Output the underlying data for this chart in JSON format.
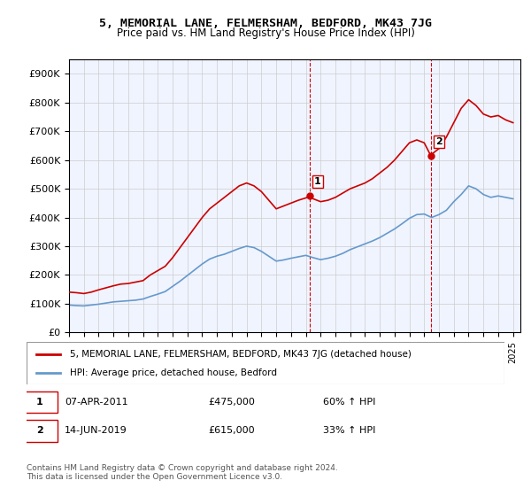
{
  "title": "5, MEMORIAL LANE, FELMERSHAM, BEDFORD, MK43 7JG",
  "subtitle": "Price paid vs. HM Land Registry's House Price Index (HPI)",
  "ylabel_ticks": [
    "£0",
    "£100K",
    "£200K",
    "£300K",
    "£400K",
    "£500K",
    "£600K",
    "£700K",
    "£800K",
    "£900K"
  ],
  "ytick_values": [
    0,
    100000,
    200000,
    300000,
    400000,
    500000,
    600000,
    700000,
    800000,
    900000
  ],
  "ylim": [
    0,
    950000
  ],
  "xlim_start": 1995.0,
  "xlim_end": 2025.5,
  "red_line_color": "#cc0000",
  "blue_line_color": "#6699cc",
  "sale1_x": 2011.27,
  "sale1_y": 475000,
  "sale2_x": 2019.45,
  "sale2_y": 615000,
  "vline_color": "#cc0000",
  "legend_label_red": "5, MEMORIAL LANE, FELMERSHAM, BEDFORD, MK43 7JG (detached house)",
  "legend_label_blue": "HPI: Average price, detached house, Bedford",
  "annotation1_label": "1",
  "annotation1_date": "07-APR-2011",
  "annotation1_price": "£475,000",
  "annotation1_hpi": "60% ↑ HPI",
  "annotation2_label": "2",
  "annotation2_date": "14-JUN-2019",
  "annotation2_price": "£615,000",
  "annotation2_hpi": "33% ↑ HPI",
  "footer": "Contains HM Land Registry data © Crown copyright and database right 2024.\nThis data is licensed under the Open Government Licence v3.0.",
  "red_x": [
    1995.0,
    1995.5,
    1996.0,
    1996.5,
    1997.0,
    1997.5,
    1998.0,
    1998.5,
    1999.0,
    1999.5,
    2000.0,
    2000.5,
    2001.0,
    2001.5,
    2002.0,
    2002.5,
    2003.0,
    2003.5,
    2004.0,
    2004.5,
    2005.0,
    2005.5,
    2006.0,
    2006.5,
    2007.0,
    2007.5,
    2008.0,
    2008.5,
    2009.0,
    2009.5,
    2010.0,
    2010.5,
    2011.0,
    2011.27,
    2011.5,
    2012.0,
    2012.5,
    2013.0,
    2013.5,
    2014.0,
    2014.5,
    2015.0,
    2015.5,
    2016.0,
    2016.5,
    2017.0,
    2017.5,
    2018.0,
    2018.5,
    2019.0,
    2019.45,
    2019.5,
    2020.0,
    2020.5,
    2021.0,
    2021.5,
    2022.0,
    2022.5,
    2023.0,
    2023.5,
    2024.0,
    2024.5,
    2025.0
  ],
  "red_y": [
    140000,
    138000,
    135000,
    140000,
    148000,
    155000,
    162000,
    168000,
    170000,
    175000,
    180000,
    200000,
    215000,
    230000,
    260000,
    295000,
    330000,
    365000,
    400000,
    430000,
    450000,
    470000,
    490000,
    510000,
    520000,
    510000,
    490000,
    460000,
    430000,
    440000,
    450000,
    460000,
    468000,
    475000,
    465000,
    455000,
    460000,
    470000,
    485000,
    500000,
    510000,
    520000,
    535000,
    555000,
    575000,
    600000,
    630000,
    660000,
    670000,
    660000,
    615000,
    620000,
    640000,
    680000,
    730000,
    780000,
    810000,
    790000,
    760000,
    750000,
    755000,
    740000,
    730000
  ],
  "blue_x": [
    1995.0,
    1995.5,
    1996.0,
    1996.5,
    1997.0,
    1997.5,
    1998.0,
    1998.5,
    1999.0,
    1999.5,
    2000.0,
    2000.5,
    2001.0,
    2001.5,
    2002.0,
    2002.5,
    2003.0,
    2003.5,
    2004.0,
    2004.5,
    2005.0,
    2005.5,
    2006.0,
    2006.5,
    2007.0,
    2007.5,
    2008.0,
    2008.5,
    2009.0,
    2009.5,
    2010.0,
    2010.5,
    2011.0,
    2011.5,
    2012.0,
    2012.5,
    2013.0,
    2013.5,
    2014.0,
    2014.5,
    2015.0,
    2015.5,
    2016.0,
    2016.5,
    2017.0,
    2017.5,
    2018.0,
    2018.5,
    2019.0,
    2019.5,
    2020.0,
    2020.5,
    2021.0,
    2021.5,
    2022.0,
    2022.5,
    2023.0,
    2023.5,
    2024.0,
    2024.5,
    2025.0
  ],
  "blue_y": [
    95000,
    93000,
    92000,
    95000,
    98000,
    102000,
    106000,
    108000,
    110000,
    112000,
    116000,
    125000,
    133000,
    142000,
    160000,
    178000,
    198000,
    218000,
    238000,
    255000,
    265000,
    272000,
    282000,
    292000,
    300000,
    295000,
    282000,
    265000,
    248000,
    252000,
    258000,
    263000,
    268000,
    260000,
    253000,
    258000,
    265000,
    275000,
    288000,
    298000,
    308000,
    318000,
    330000,
    345000,
    360000,
    378000,
    397000,
    410000,
    412000,
    400000,
    410000,
    425000,
    455000,
    480000,
    510000,
    500000,
    480000,
    470000,
    475000,
    470000,
    465000
  ]
}
